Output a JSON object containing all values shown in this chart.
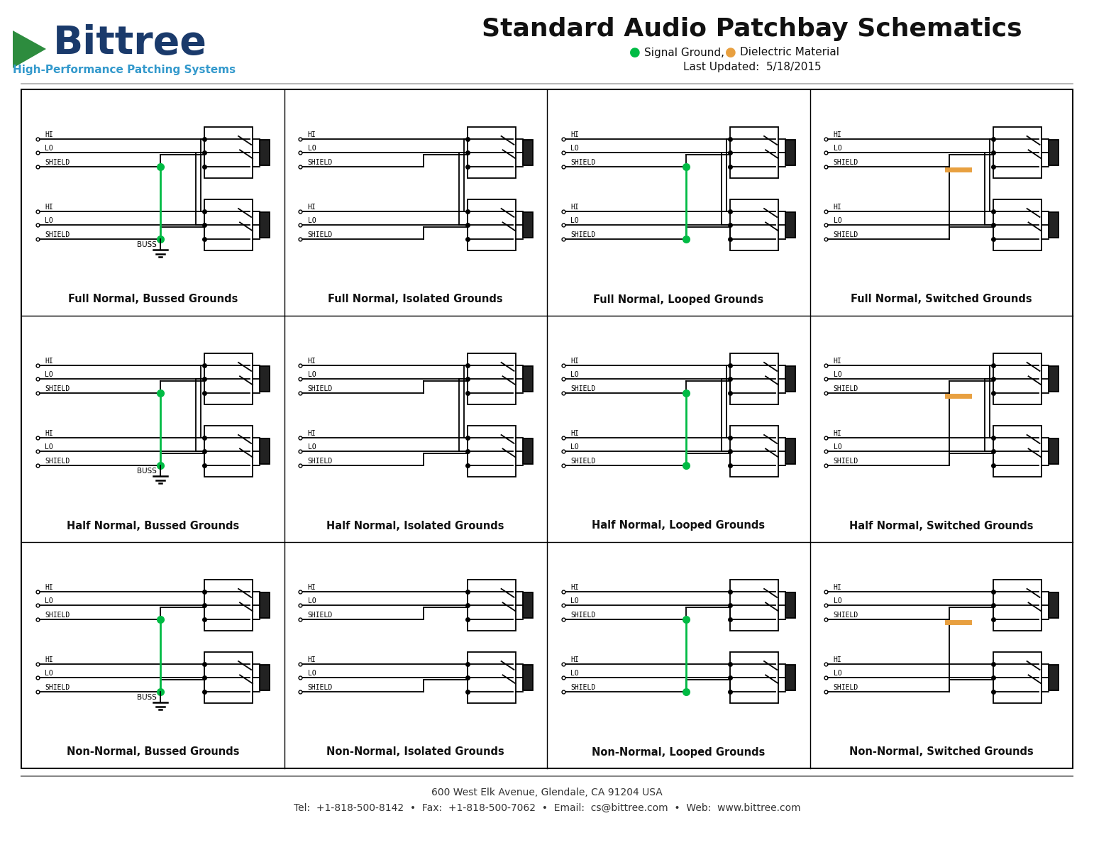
{
  "title": "Standard Audio Patchbay Schematics",
  "last_updated": "Last Updated:  5/18/2015",
  "bittree_color": "#1a3a6b",
  "bittree_green": "#2d8c3e",
  "hp_color": "#3399cc",
  "footer_address": "600 West Elk Avenue, Glendale, CA 91204 USA",
  "footer_contact": "Tel:  +1-818-500-8142  •  Fax:  +1-818-500-7062  •  Email:  cs@bittree.com  •  Web:  www.bittree.com",
  "grid_titles": [
    [
      "Full Normal, Bussed Grounds",
      "Full Normal, Isolated Grounds",
      "Full Normal, Looped Grounds",
      "Full Normal, Switched Grounds"
    ],
    [
      "Half Normal, Bussed Grounds",
      "Half Normal, Isolated Grounds",
      "Half Normal, Looped Grounds",
      "Half Normal, Switched Grounds"
    ],
    [
      "Non-Normal, Bussed Grounds",
      "Non-Normal, Isolated Grounds",
      "Non-Normal, Looped Grounds",
      "Non-Normal, Switched Grounds"
    ]
  ],
  "bg_color": "#ffffff",
  "lc": "#000000",
  "green_color": "#00bb44",
  "orange_color": "#e8a040",
  "dot1_color": "#00bb44",
  "dot2_color": "#e8a040"
}
